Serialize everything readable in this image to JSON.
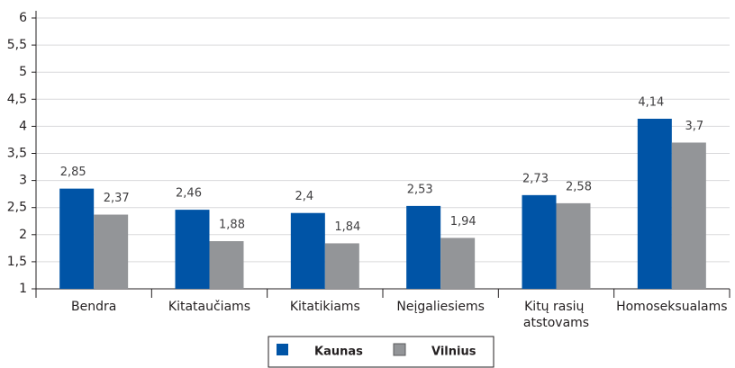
{
  "chart_data": {
    "type": "bar",
    "categories": [
      "Bendra",
      "Kitataučiams",
      "Kitatikiams",
      "Neįgaliesiems",
      "Kitų rasių atstovams",
      "Homoseksualams"
    ],
    "series": [
      {
        "name": "Kaunas",
        "color": "#0054a6",
        "values": [
          2.85,
          2.46,
          2.4,
          2.53,
          2.73,
          4.14
        ],
        "value_labels": [
          "2,85",
          "2,46",
          "2,4",
          "2,53",
          "2,73",
          "4,14"
        ]
      },
      {
        "name": "Vilnius",
        "color": "#939598",
        "values": [
          2.37,
          1.88,
          1.84,
          1.94,
          2.58,
          3.7
        ],
        "value_labels": [
          "2,37",
          "1,88",
          "1,84",
          "1,94",
          "2,58",
          "3,7"
        ]
      }
    ],
    "ylim": [
      1,
      6
    ],
    "yticks": [
      1,
      {
        "value": 1.5,
        "label": "1,5"
      },
      2,
      {
        "value": 2.5,
        "label": "2,5"
      },
      3,
      {
        "value": 3.5,
        "label": "3,5"
      },
      4,
      {
        "value": 4.5,
        "label": "4,5"
      },
      5,
      {
        "value": 5.5,
        "label": "5,5"
      },
      6
    ],
    "grid": true
  }
}
